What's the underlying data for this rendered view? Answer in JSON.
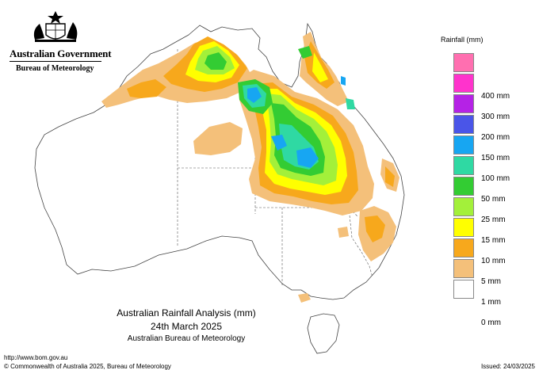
{
  "header": {
    "government": "Australian Government",
    "agency": "Bureau of Meteorology"
  },
  "legend": {
    "title": "Rainfall (mm)",
    "items": [
      {
        "label": "",
        "color": "#ff6fb0"
      },
      {
        "label": "400 mm",
        "color": "#ff33cc"
      },
      {
        "label": "300 mm",
        "color": "#b522e6"
      },
      {
        "label": "200 mm",
        "color": "#4a55e8"
      },
      {
        "label": "150 mm",
        "color": "#17a6f2"
      },
      {
        "label": "100 mm",
        "color": "#2fd9a3"
      },
      {
        "label": "50 mm",
        "color": "#33cc33"
      },
      {
        "label": "25 mm",
        "color": "#a3f03a"
      },
      {
        "label": "15 mm",
        "color": "#ffff00"
      },
      {
        "label": "10 mm",
        "color": "#f7a81c"
      },
      {
        "label": "5 mm",
        "color": "#f4c07a"
      },
      {
        "label": "1 mm",
        "color": "#ffffff"
      },
      {
        "label": "0 mm",
        "color": ""
      }
    ]
  },
  "map": {
    "title": "Australian Rainfall Analysis (mm)",
    "date": "24th March 2025",
    "organisation": "Australian Bureau of Meteorology"
  },
  "footer": {
    "url": "http://www.bom.gov.au",
    "copyright": "© Commonwealth of Australia 2025, Bureau of Meteorology",
    "issued": "Issued: 24/03/2025"
  }
}
